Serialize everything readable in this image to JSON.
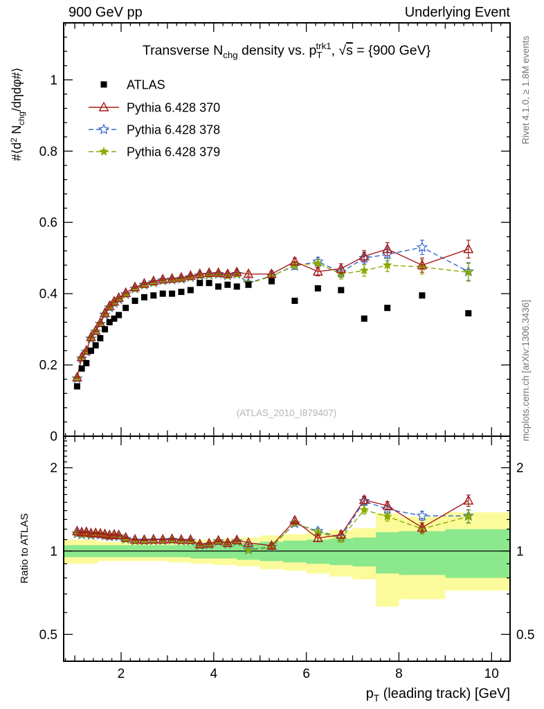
{
  "header": {
    "left": "900 GeV pp",
    "right": "Underlying Event"
  },
  "title": {
    "p1": "Transverse N",
    "sub1": "chg",
    "p2": " density vs. p",
    "sub2": "T",
    "sup1": "trk1",
    "p3": ", ",
    "sqrt": "√",
    "sqrt_arg": "s",
    "p4": " = {900 GeV}"
  },
  "ylabel": {
    "p1": "#⟨d",
    "sup1": "2",
    "p2": " N",
    "sub1": "chg",
    "p3": "/dηdφ#⟩"
  },
  "xlabel": {
    "p1": "p",
    "sub1": "T",
    "p2": " (leading track) [GeV]"
  },
  "ratio": {
    "ylabel": "Ratio to ATLAS"
  },
  "watermark": "(ATLAS_2010_I879407)",
  "side": {
    "top": "Rivet 4.1.0, ≥ 1.8M events",
    "bottom": "mcplots.cern.ch [arXiv:1306.3436]"
  },
  "legend": {
    "entries": [
      {
        "label": "ATLAS"
      },
      {
        "label": "Pythia 6.428 370"
      },
      {
        "label": "Pythia 6.428 378"
      },
      {
        "label": "Pythia 6.428 379"
      }
    ]
  },
  "colors": {
    "atlas": "#000000",
    "p370": "#a61e1e",
    "p378": "#3366cc",
    "p379": "#88aa00",
    "band_yellow": "#fbfb9b",
    "band_green": "#8ce88c"
  },
  "chart_data": {
    "type": "line",
    "title": "Transverse N_chg density vs. pT^trk1, sqrt(s) = {900 GeV}",
    "xlabel": "pT (leading track) [GeV]",
    "ylabel": "#<d2 N_chg/detadphi#>",
    "ratio_ylabel": "Ratio to ATLAS",
    "xlim": [
      0.76,
      10.4
    ],
    "ylim_main": [
      0,
      1.16
    ],
    "ylim_ratio": [
      0.4,
      2.6
    ],
    "ratio_log": true,
    "xticks": [
      2,
      4,
      6,
      8,
      10
    ],
    "yticks_main": [
      0,
      0.2,
      0.4,
      0.6,
      0.8,
      1
    ],
    "yticks_ratio": [
      0.5,
      1,
      2
    ],
    "x": [
      1.05,
      1.15,
      1.25,
      1.35,
      1.45,
      1.55,
      1.65,
      1.75,
      1.85,
      1.95,
      2.1,
      2.3,
      2.5,
      2.7,
      2.9,
      3.1,
      3.3,
      3.5,
      3.7,
      3.9,
      4.1,
      4.3,
      4.5,
      4.75,
      5.25,
      5.75,
      6.25,
      6.75,
      7.25,
      7.75,
      8.5,
      9.5
    ],
    "series": [
      {
        "name": "ATLAS",
        "key": "atlas",
        "marker": "square",
        "line": "none",
        "values": [
          0.14,
          0.19,
          0.205,
          0.24,
          0.255,
          0.275,
          0.3,
          0.32,
          0.33,
          0.34,
          0.36,
          0.38,
          0.39,
          0.395,
          0.4,
          0.4,
          0.405,
          0.41,
          0.43,
          0.43,
          0.42,
          0.425,
          0.42,
          0.425,
          0.435,
          0.38,
          0.415,
          0.41,
          0.33,
          0.36,
          0.395,
          0.345
        ],
        "errors": [
          0.004,
          0.004,
          0.004,
          0.004,
          0.004,
          0.004,
          0.004,
          0.004,
          0.004,
          0.004,
          0.004,
          0.004,
          0.004,
          0.004,
          0.004,
          0.004,
          0.004,
          0.004,
          0.004,
          0.004,
          0.004,
          0.004,
          0.004,
          0.004,
          0.004,
          0.004,
          0.004,
          0.004,
          0.004,
          0.004,
          0.004,
          0.004
        ]
      },
      {
        "name": "Pythia 6.428 370",
        "key": "p370",
        "marker": "triangle-open",
        "line": "solid",
        "values": [
          0.165,
          0.222,
          0.24,
          0.278,
          0.296,
          0.318,
          0.345,
          0.365,
          0.378,
          0.388,
          0.402,
          0.418,
          0.428,
          0.435,
          0.44,
          0.442,
          0.445,
          0.45,
          0.455,
          0.458,
          0.458,
          0.455,
          0.46,
          0.455,
          0.455,
          0.49,
          0.462,
          0.47,
          0.505,
          0.525,
          0.48,
          0.525
        ],
        "errors": [
          0.002,
          0.002,
          0.002,
          0.002,
          0.002,
          0.002,
          0.002,
          0.003,
          0.003,
          0.003,
          0.003,
          0.003,
          0.003,
          0.003,
          0.004,
          0.004,
          0.004,
          0.004,
          0.005,
          0.005,
          0.005,
          0.006,
          0.006,
          0.006,
          0.008,
          0.01,
          0.012,
          0.014,
          0.016,
          0.018,
          0.02,
          0.025
        ]
      },
      {
        "name": "Pythia 6.428 378",
        "key": "p378",
        "marker": "star-open",
        "line": "dashed",
        "values": [
          0.162,
          0.218,
          0.237,
          0.274,
          0.293,
          0.315,
          0.341,
          0.361,
          0.374,
          0.384,
          0.398,
          0.414,
          0.425,
          0.431,
          0.437,
          0.439,
          0.441,
          0.446,
          0.451,
          0.453,
          0.455,
          0.451,
          0.455,
          0.43,
          0.45,
          0.478,
          0.49,
          0.46,
          0.5,
          0.51,
          0.53,
          0.462
        ],
        "errors": [
          0.002,
          0.002,
          0.002,
          0.002,
          0.002,
          0.002,
          0.002,
          0.003,
          0.003,
          0.003,
          0.003,
          0.003,
          0.003,
          0.003,
          0.004,
          0.004,
          0.004,
          0.004,
          0.005,
          0.005,
          0.005,
          0.006,
          0.006,
          0.006,
          0.008,
          0.01,
          0.012,
          0.014,
          0.016,
          0.018,
          0.02,
          0.025
        ]
      },
      {
        "name": "Pythia 6.428 379",
        "key": "p379",
        "marker": "star-filled",
        "line": "dashed",
        "values": [
          0.162,
          0.218,
          0.237,
          0.274,
          0.293,
          0.315,
          0.341,
          0.361,
          0.374,
          0.384,
          0.397,
          0.413,
          0.423,
          0.43,
          0.436,
          0.438,
          0.44,
          0.445,
          0.45,
          0.452,
          0.454,
          0.45,
          0.454,
          0.428,
          0.449,
          0.48,
          0.485,
          0.455,
          0.465,
          0.48,
          0.475,
          0.46
        ],
        "errors": [
          0.002,
          0.002,
          0.002,
          0.002,
          0.002,
          0.002,
          0.002,
          0.003,
          0.003,
          0.003,
          0.003,
          0.003,
          0.003,
          0.003,
          0.004,
          0.004,
          0.004,
          0.004,
          0.005,
          0.005,
          0.005,
          0.006,
          0.006,
          0.006,
          0.008,
          0.01,
          0.012,
          0.014,
          0.016,
          0.018,
          0.02,
          0.025
        ]
      }
    ],
    "bands": {
      "edges": [
        0.76,
        1.5,
        2,
        2.5,
        3,
        3.5,
        4,
        4.5,
        5,
        5.5,
        6,
        6.5,
        7,
        7.5,
        8,
        9,
        10.4
      ],
      "yellow_lo": [
        0.9,
        0.92,
        0.92,
        0.92,
        0.91,
        0.9,
        0.89,
        0.88,
        0.86,
        0.85,
        0.83,
        0.81,
        0.79,
        0.63,
        0.67,
        0.72
      ],
      "yellow_hi": [
        1.1,
        1.08,
        1.08,
        1.08,
        1.09,
        1.1,
        1.11,
        1.12,
        1.14,
        1.15,
        1.17,
        1.19,
        1.21,
        1.37,
        1.33,
        1.38
      ],
      "green_lo": [
        0.95,
        0.95,
        0.95,
        0.95,
        0.95,
        0.94,
        0.94,
        0.93,
        0.92,
        0.91,
        0.9,
        0.89,
        0.88,
        0.83,
        0.82,
        0.8
      ],
      "green_hi": [
        1.05,
        1.05,
        1.05,
        1.05,
        1.05,
        1.06,
        1.06,
        1.07,
        1.08,
        1.09,
        1.1,
        1.11,
        1.12,
        1.17,
        1.18,
        1.2
      ]
    }
  }
}
